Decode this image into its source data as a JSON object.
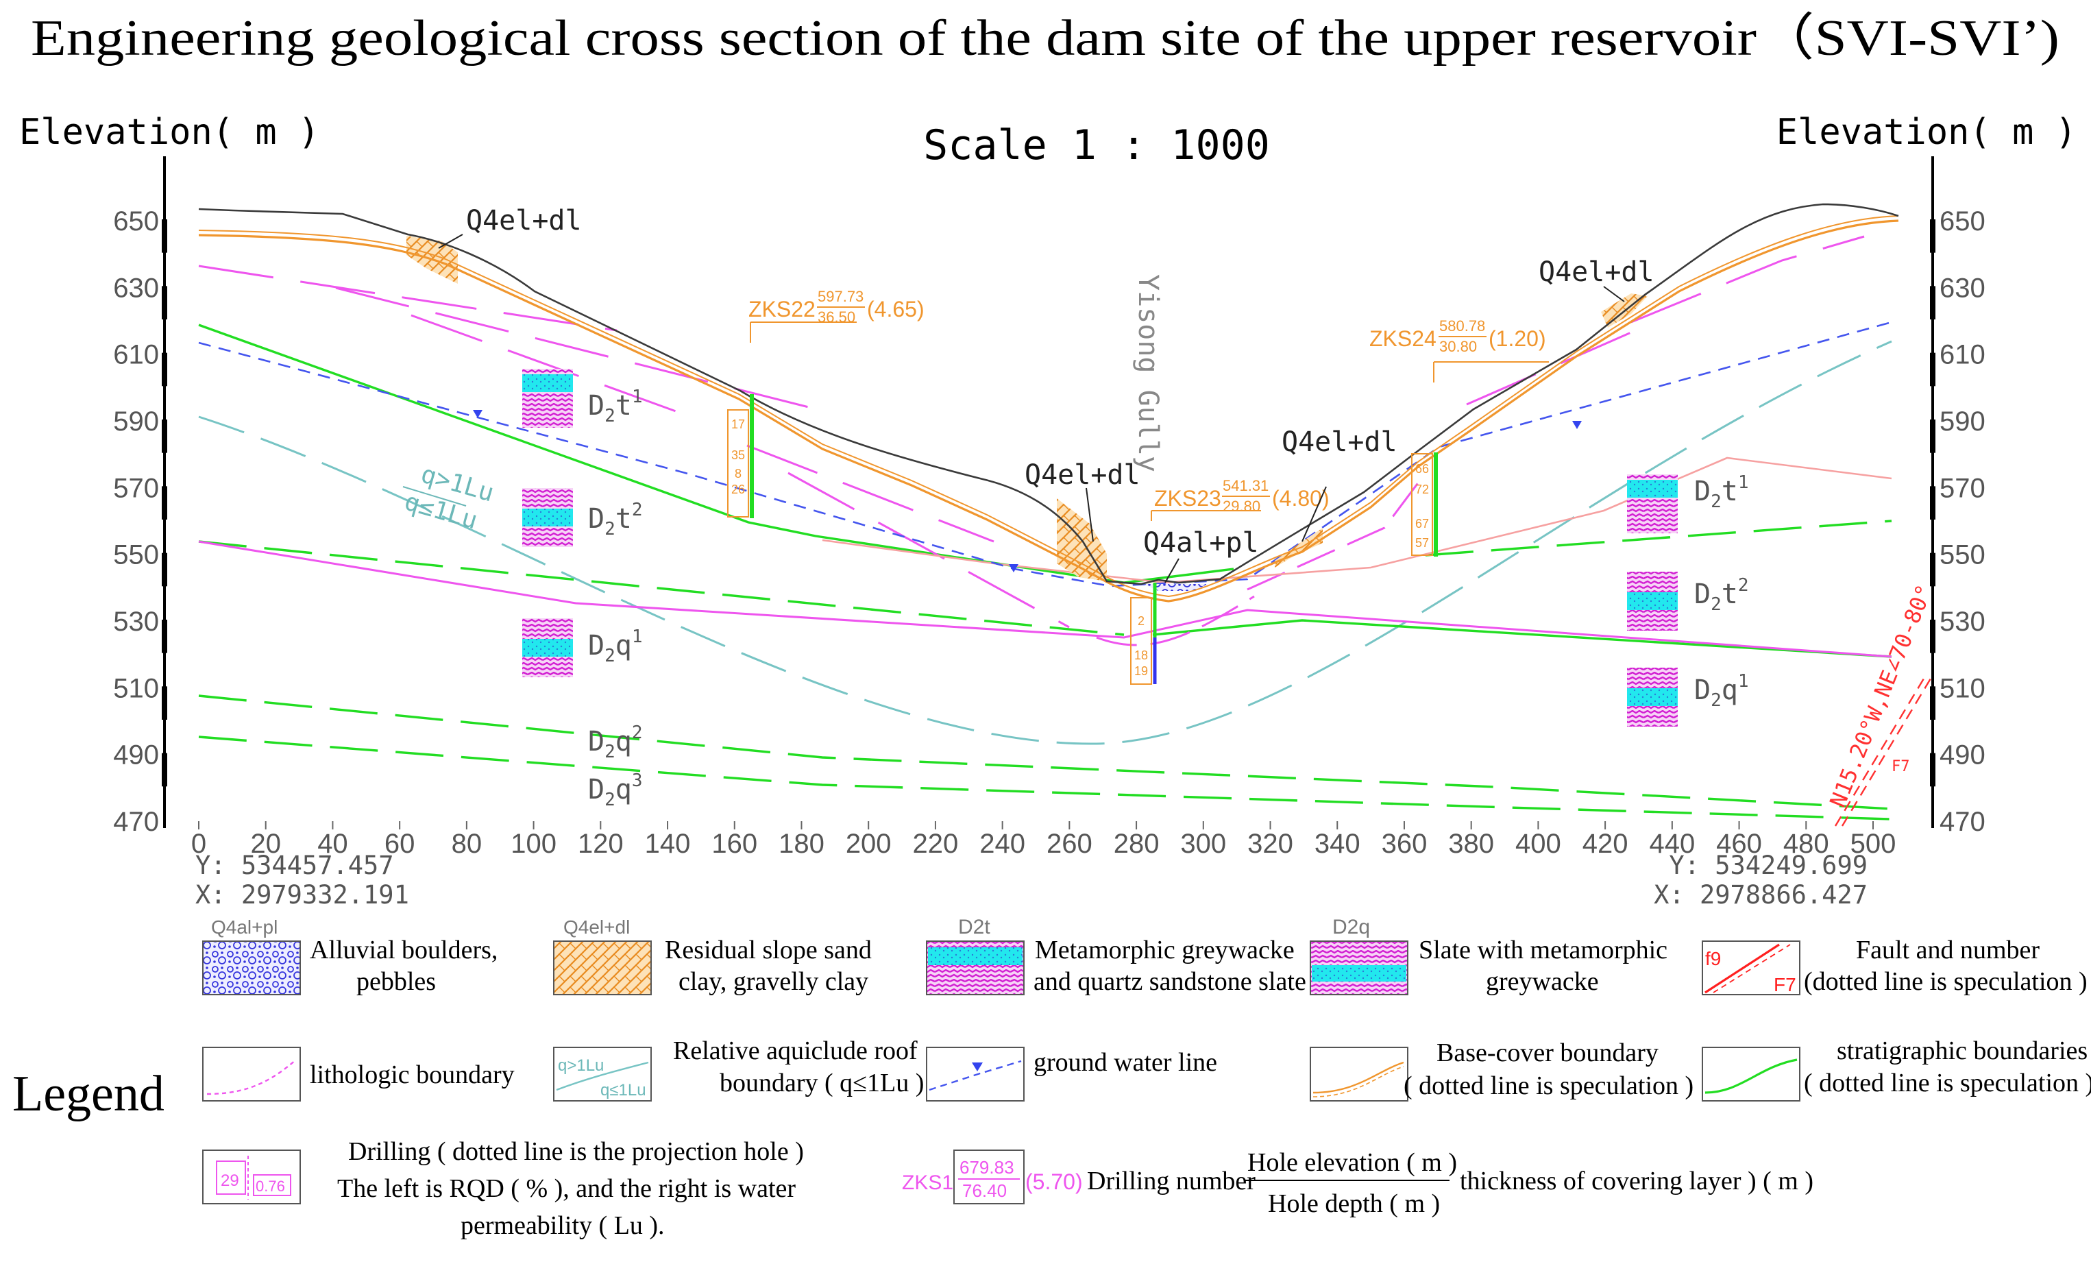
{
  "title": "Engineering geological cross section of the dam site of the upper reservoir（SVI-SVI’)",
  "scale_label": "Scale 1 : 1000",
  "axis": {
    "left_label": "Elevation( m )",
    "right_label": "Elevation( m )",
    "elev_ticks": [
      650,
      630,
      610,
      590,
      570,
      550,
      530,
      510,
      490,
      470
    ],
    "dist_ticks": [
      0,
      20,
      40,
      60,
      80,
      100,
      120,
      140,
      160,
      180,
      200,
      220,
      240,
      260,
      280,
      300,
      320,
      340,
      360,
      380,
      400,
      420,
      440,
      460,
      480,
      500
    ]
  },
  "coords": {
    "left_y": "Y: 534457.457",
    "left_x": "X: 2979332.191",
    "right_y": "Y: 534249.699",
    "right_x": "X: 2978866.427"
  },
  "section_labels": {
    "q4eldl": "Q4el+dl",
    "q4alpl": "Q4al+pl",
    "gully": "Yisong Gully",
    "q_gt": "q>1Lu",
    "q_le": "q≤1Lu",
    "fault": "N15.20°W,NE∠70-80°",
    "fault_no": "F7"
  },
  "strata": {
    "d2t_base": "D",
    "d2t_sub": "2",
    "d2t_t": "t",
    "d2q_q": "q",
    "sup1": "1",
    "sup2": "2",
    "sup3": "3"
  },
  "boreholes": [
    {
      "name": "ZKS22",
      "elev": "597.73",
      "depth": "36.50",
      "cover": "(4.65)",
      "cells": [
        "17",
        "35",
        "8",
        "26"
      ]
    },
    {
      "name": "ZKS23",
      "elev": "541.31",
      "depth": "29.80",
      "cover": "(4.80)",
      "cells": [
        "2",
        "18",
        "19"
      ]
    },
    {
      "name": "ZKS24",
      "elev": "580.78",
      "depth": "30.80",
      "cover": "(1.20)",
      "cells": [
        "66",
        "72",
        "67",
        "57"
      ]
    }
  ],
  "legend": {
    "title": "Legend",
    "items": [
      {
        "key": "Q4al+pl",
        "label1": "Alluvial boulders,",
        "label2": "pebbles"
      },
      {
        "key": "Q4el+dl",
        "label1": "Residual slope sand",
        "label2": "clay, gravelly clay"
      },
      {
        "key": "D2t",
        "label1": "Metamorphic greywacke",
        "label2": "and quartz sandstone slate"
      },
      {
        "key": "D2q",
        "label1": "Slate with metamorphic",
        "label2": "greywacke"
      },
      {
        "key": "f9",
        "key2": "F7",
        "label1": "Fault and number",
        "label2": "(dotted line is speculation )"
      },
      {
        "label1": "lithologic boundary"
      },
      {
        "key": "q>1Lu",
        "key2": "q≤1Lu",
        "label1": "Relative aquiclude roof",
        "label2": "boundary ( q≤1Lu )"
      },
      {
        "label1": "ground water line"
      },
      {
        "label1": "Base-cover boundary",
        "label2": "( dotted line is speculation )"
      },
      {
        "label1": "stratigraphic boundaries",
        "label2": "( dotted line is speculation )"
      },
      {
        "key": "29",
        "key2": "0.76",
        "label1": "Drilling ( dotted line is the projection hole )",
        "label2": "The left is RQD ( % ), and the right is water",
        "label3": "permeability ( Lu )."
      },
      {
        "key": "ZKS1",
        "key_elev": "679.83",
        "key_depth": "76.40",
        "key_cover": "(5.70)",
        "label1": "Drilling number",
        "frac_top": "Hole elevation ( m )",
        "frac_bot": "Hole depth ( m )",
        "label3": "thickness of covering layer ) ( m )"
      }
    ]
  },
  "colors": {
    "ground": "#3a3a3a",
    "cover": "#f0962e",
    "strat": "#22dd22",
    "litho": "#ee55ee",
    "water": "#4455ee",
    "aquiclude": "#77c4c4",
    "fault": "#ff2020",
    "base_pink": "#f6a0a0",
    "cyan": "#22e8ee",
    "magenta": "#e23fe2"
  }
}
